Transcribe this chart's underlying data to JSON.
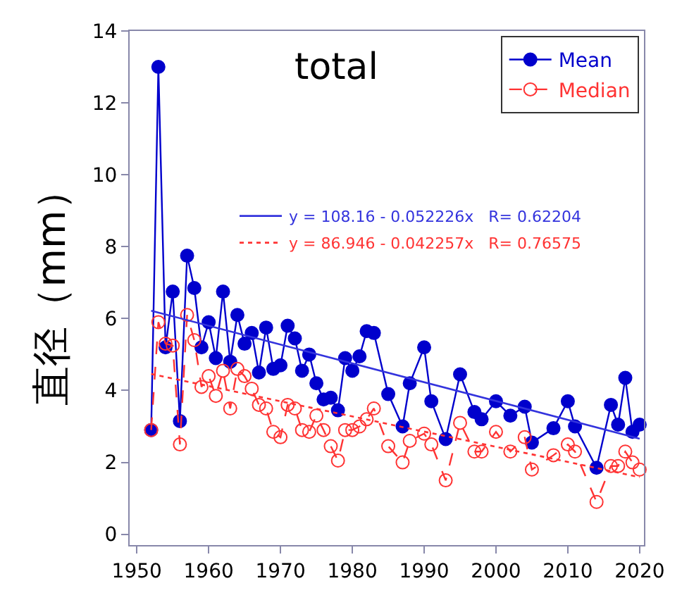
{
  "chart_data": {
    "type": "line",
    "title": "total",
    "ylabel": "直径（mm）",
    "xlim": [
      1949,
      2020.6
    ],
    "ylim": [
      -0.3,
      14
    ],
    "xticks": [
      1950,
      1960,
      1970,
      1980,
      1990,
      2000,
      2010,
      2020
    ],
    "yticks": [
      0,
      2,
      4,
      6,
      8,
      10,
      12,
      14
    ],
    "legend": "top right",
    "series": [
      {
        "name": "Mean",
        "color": "#0000cc",
        "marker": "circle",
        "line_style": "solid",
        "x": [
          1952,
          1953,
          1954,
          1955,
          1956,
          1957,
          1958,
          1959,
          1960,
          1961,
          1962,
          1963,
          1964,
          1965,
          1966,
          1967,
          1968,
          1969,
          1970,
          1971,
          1972,
          1973,
          1974,
          1975,
          1976,
          1977,
          1978,
          1979,
          1980,
          1981,
          1982,
          1983,
          1985,
          1987,
          1988,
          1990,
          1991,
          1993,
          1995,
          1997,
          1998,
          2000,
          2002,
          2004,
          2005,
          2008,
          2010,
          2011,
          2014,
          2016,
          2017,
          2018,
          2019,
          2020
        ],
        "values": [
          2.9,
          13.0,
          5.2,
          6.75,
          3.15,
          7.75,
          6.85,
          5.2,
          5.9,
          4.9,
          6.75,
          4.8,
          6.1,
          5.3,
          5.6,
          4.5,
          5.75,
          4.6,
          4.7,
          5.8,
          5.45,
          4.55,
          5.0,
          4.2,
          3.75,
          3.8,
          3.45,
          4.9,
          4.55,
          4.95,
          5.65,
          5.6,
          3.9,
          3.0,
          4.2,
          5.2,
          3.7,
          2.65,
          4.45,
          3.4,
          3.2,
          3.7,
          3.3,
          3.55,
          2.55,
          2.95,
          3.7,
          3.0,
          1.85,
          3.6,
          3.05,
          4.35,
          2.85,
          3.05
        ]
      },
      {
        "name": "Median",
        "color": "#ff3333",
        "marker": "circle",
        "line_style": "dashed",
        "x": [
          1952,
          1953,
          1954,
          1955,
          1956,
          1957,
          1958,
          1959,
          1960,
          1961,
          1962,
          1963,
          1964,
          1965,
          1966,
          1967,
          1968,
          1969,
          1970,
          1971,
          1972,
          1973,
          1974,
          1975,
          1976,
          1977,
          1978,
          1979,
          1980,
          1981,
          1982,
          1983,
          1985,
          1987,
          1988,
          1990,
          1991,
          1993,
          1995,
          1997,
          1998,
          2000,
          2002,
          2004,
          2005,
          2008,
          2010,
          2011,
          2014,
          2016,
          2017,
          2018,
          2019,
          2020
        ],
        "values": [
          2.9,
          5.9,
          5.3,
          5.25,
          2.5,
          6.1,
          5.4,
          4.1,
          4.4,
          3.85,
          4.55,
          3.5,
          4.6,
          4.4,
          4.05,
          3.6,
          3.5,
          2.85,
          2.7,
          3.6,
          3.5,
          2.9,
          2.85,
          3.3,
          2.9,
          2.45,
          2.05,
          2.9,
          2.9,
          3.0,
          3.2,
          3.5,
          2.45,
          2.0,
          2.6,
          2.8,
          2.5,
          1.5,
          3.1,
          2.3,
          2.3,
          2.85,
          2.3,
          2.7,
          1.8,
          2.2,
          2.5,
          2.3,
          0.9,
          1.9,
          1.9,
          2.3,
          2.0,
          1.8
        ]
      },
      {
        "name": "y = 108.16 - 0.052226x   R= 0.62204",
        "color": "#3333dd",
        "marker": "none",
        "line_style": "solid",
        "x": [
          1952,
          2020
        ],
        "values": [
          6.22,
          2.66
        ]
      },
      {
        "name": "y = 86.946 - 0.042257x   R= 0.76575",
        "color": "#ff3333",
        "marker": "none",
        "line_style": "dotted",
        "x": [
          1952,
          2020
        ],
        "values": [
          4.46,
          1.59
        ]
      }
    ]
  }
}
